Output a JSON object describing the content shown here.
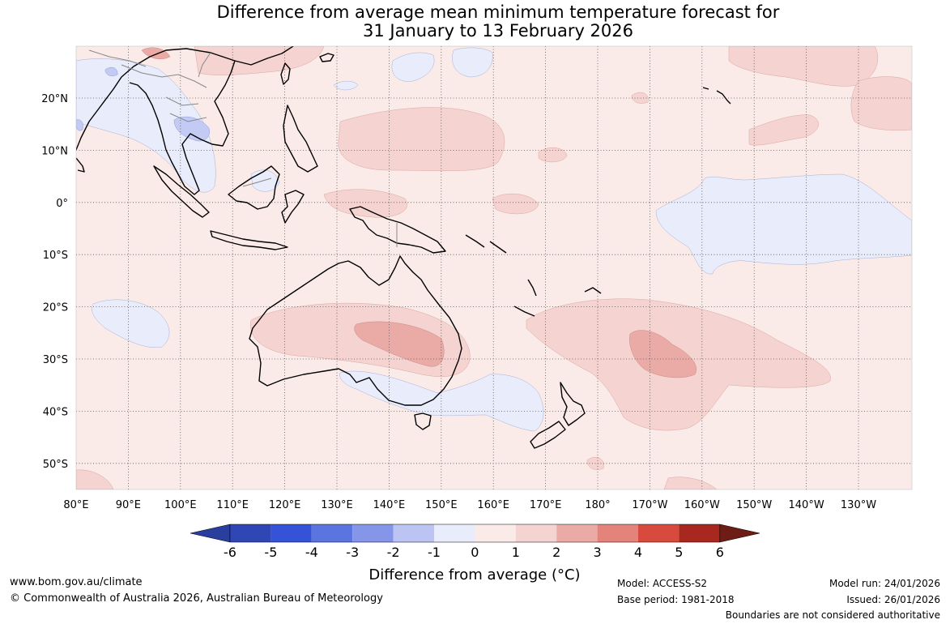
{
  "title": {
    "line1": "Difference from average mean minimum temperature forecast for",
    "line2": "31 January to 13 February 2026"
  },
  "map": {
    "lon_labels": [
      "80°E",
      "90°E",
      "100°E",
      "110°E",
      "120°E",
      "130°E",
      "140°E",
      "150°E",
      "160°E",
      "170°E",
      "180°",
      "170°W",
      "160°W",
      "150°W",
      "140°W",
      "130°W"
    ],
    "lat_labels": [
      "20°N",
      "10°N",
      "0°",
      "10°S",
      "20°S",
      "30°S",
      "40°S",
      "50°S"
    ],
    "colors": {
      "background": "#fbebe8",
      "anomaly_0_1": "#fbebe8",
      "anomaly_1_2": "#f4d3d0",
      "anomaly_2_3": "#eaaaa6",
      "anomaly_neg1_0": "#e8ecfb",
      "anomaly_neg2_neg1": "#c3cbf5",
      "coastline": "#000000",
      "borders": "#888888"
    }
  },
  "colorbar": {
    "ticks": [
      "-6",
      "-5",
      "-4",
      "-3",
      "-2",
      "-1",
      "0",
      "1",
      "2",
      "3",
      "4",
      "5",
      "6"
    ],
    "colors": [
      "#2a3e9e",
      "#2f47b5",
      "#3553d7",
      "#5a74e0",
      "#8596e8",
      "#bcc4f3",
      "#e9ecfb",
      "#fbebe8",
      "#f4d3d0",
      "#eaaaa6",
      "#e4837a",
      "#d74a3d",
      "#a8281f",
      "#6e1d16"
    ],
    "label": "Difference from average (°C)"
  },
  "footer": {
    "website": "www.bom.gov.au/climate",
    "copyright": "© Commonwealth of Australia 2026, Australian Bureau of Meteorology",
    "model": "Model: ACCESS-S2",
    "base_period": "Base period: 1981-2018",
    "model_run": "Model run: 24/01/2026",
    "issued": "Issued: 26/01/2026",
    "disclaimer": "Boundaries are not considered authoritative"
  }
}
